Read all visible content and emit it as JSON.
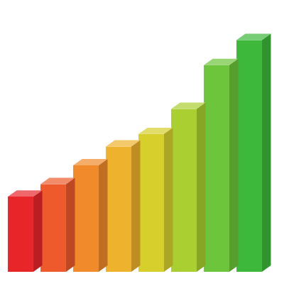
{
  "chart_data": {
    "type": "bar",
    "categories": [
      null,
      null,
      null,
      null,
      null,
      null,
      null,
      null
    ],
    "values": [
      60,
      70,
      85,
      100,
      110,
      130,
      165,
      185
    ],
    "colors": [
      "#e8262a",
      "#ee5a2c",
      "#f08a2a",
      "#eeb22c",
      "#d6cf2c",
      "#a9cf30",
      "#6cc53a",
      "#3db83a"
    ],
    "ylim": [
      0,
      200
    ],
    "grid": false,
    "tick_labels": false
  }
}
